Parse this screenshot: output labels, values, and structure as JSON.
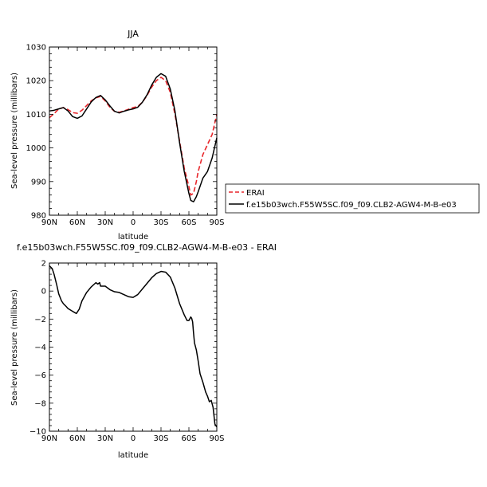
{
  "chart_data": [
    {
      "type": "line",
      "title": "JJA",
      "xlabel": "latitude",
      "ylabel": "Sea-level pressure (millibars)",
      "xlim": [
        -90,
        90
      ],
      "ylim": [
        980,
        1030
      ],
      "xticks": [
        -90,
        -60,
        -30,
        0,
        30,
        60,
        90
      ],
      "xtick_labels": [
        "90N",
        "60N",
        "30N",
        "0",
        "30S",
        "60S",
        "90S"
      ],
      "yticks": [
        980,
        990,
        1000,
        1010,
        1020,
        1030
      ],
      "ytick_labels": [
        "980",
        "990",
        "1000",
        "1010",
        "1020",
        "1030"
      ],
      "legend_position": "right",
      "series": [
        {
          "name": "ERAI",
          "color": "#e8262b",
          "dash": "dashed",
          "x": [
            -90,
            -85,
            -80,
            -75,
            -70,
            -65,
            -60,
            -55,
            -50,
            -45,
            -40,
            -35,
            -30,
            -25,
            -20,
            -15,
            -10,
            -5,
            0,
            5,
            10,
            15,
            20,
            25,
            30,
            35,
            40,
            45,
            50,
            55,
            60,
            62,
            65,
            68,
            70,
            75,
            80,
            85,
            90
          ],
          "y": [
            1009,
            1010.2,
            1011.6,
            1012,
            1011.4,
            1010.5,
            1010.3,
            1011.2,
            1012.6,
            1014,
            1014.9,
            1015.3,
            1014,
            1012.1,
            1010.9,
            1010.6,
            1011,
            1011.5,
            1012,
            1012.3,
            1013.6,
            1015.6,
            1018.1,
            1020,
            1021,
            1020,
            1016.5,
            1010,
            1002,
            994,
            988.5,
            986,
            986.5,
            990,
            993,
            998,
            1001,
            1004,
            1010
          ]
        },
        {
          "name": "f.e15b03wch.F55W5SC.f09_f09.CLB2-AGW4-M-B-e03",
          "color": "#000000",
          "dash": "solid",
          "x": [
            -90,
            -85,
            -80,
            -75,
            -70,
            -65,
            -60,
            -55,
            -50,
            -45,
            -40,
            -35,
            -30,
            -25,
            -20,
            -15,
            -10,
            -5,
            0,
            5,
            10,
            15,
            20,
            25,
            30,
            35,
            40,
            45,
            50,
            55,
            60,
            62,
            65,
            68,
            70,
            75,
            80,
            85,
            90
          ],
          "y": [
            1011,
            1011.2,
            1011.6,
            1012,
            1011,
            1009.3,
            1008.8,
            1009.5,
            1011.6,
            1013.7,
            1015,
            1015.6,
            1014.3,
            1012.5,
            1010.9,
            1010.4,
            1010.9,
            1011.3,
            1011.6,
            1012.1,
            1013.6,
            1015.8,
            1018.7,
            1021,
            1022.1,
            1021.3,
            1017.5,
            1011,
            1001.5,
            993,
            986.5,
            984.4,
            984,
            985.5,
            987,
            991,
            993,
            997,
            1003
          ]
        }
      ]
    },
    {
      "type": "line",
      "title": "f.e15b03wch.F55W5SC.f09_f09.CLB2-AGW4-M-B-e03 - ERAI",
      "xlabel": "latitude",
      "ylabel": "Sea-level pressure (millibars)",
      "xlim": [
        -90,
        90
      ],
      "ylim": [
        -10,
        2
      ],
      "xticks": [
        -90,
        -60,
        -30,
        0,
        30,
        60,
        90
      ],
      "xtick_labels": [
        "90N",
        "60N",
        "30N",
        "0",
        "30S",
        "60S",
        "90S"
      ],
      "yticks": [
        -10,
        -8,
        -6,
        -4,
        -2,
        0,
        2
      ],
      "ytick_labels": [
        "−10",
        "−8",
        "−6",
        "−4",
        "−2",
        "0",
        "2"
      ],
      "series": [
        {
          "color": "#000000",
          "dash": "solid",
          "x": [
            -90,
            -87,
            -85,
            -82,
            -80,
            -77,
            -75,
            -72,
            -70,
            -65,
            -61,
            -58,
            -55,
            -50,
            -45,
            -40,
            -38,
            -36,
            -35,
            -33,
            -30,
            -25,
            -20,
            -15,
            -10,
            -5,
            0,
            5,
            10,
            15,
            20,
            25,
            30,
            35,
            40,
            45,
            50,
            55,
            58,
            60,
            62,
            63,
            64,
            65,
            66,
            68,
            70,
            72,
            75,
            78,
            80,
            82,
            84,
            86,
            88,
            90
          ],
          "y": [
            1.8,
            1.6,
            1.2,
            0.4,
            -0.2,
            -0.7,
            -0.9,
            -1.1,
            -1.25,
            -1.45,
            -1.6,
            -1.3,
            -0.7,
            -0.1,
            0.3,
            0.6,
            0.5,
            0.6,
            0.35,
            0.35,
            0.35,
            0.1,
            -0.05,
            -0.1,
            -0.25,
            -0.4,
            -0.45,
            -0.25,
            0.15,
            0.55,
            0.95,
            1.25,
            1.4,
            1.35,
            1.0,
            0.2,
            -0.9,
            -1.7,
            -2.1,
            -2.1,
            -1.85,
            -1.95,
            -2.2,
            -3.0,
            -3.7,
            -4.2,
            -5.0,
            -5.9,
            -6.5,
            -7.2,
            -7.5,
            -7.9,
            -7.8,
            -8.3,
            -9.5,
            -9.7
          ]
        }
      ]
    }
  ]
}
